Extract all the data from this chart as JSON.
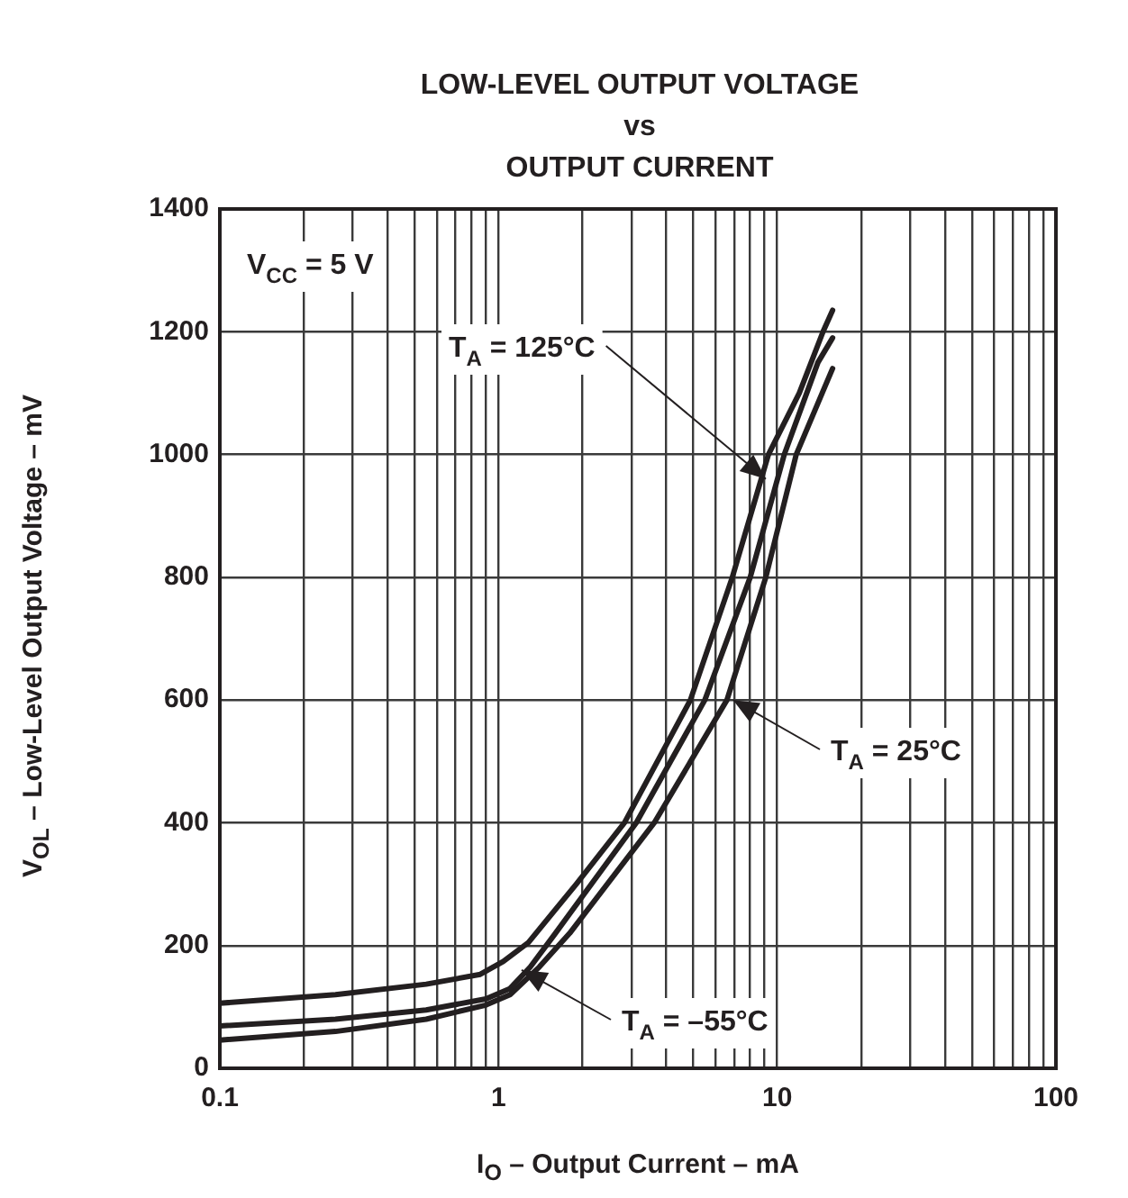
{
  "chart_data": {
    "type": "line",
    "title": "LOW-LEVEL OUTPUT VOLTAGE\nvs\nOUTPUT CURRENT",
    "xlabel": "I$_{O}$ – Output Current – mA",
    "ylabel": "V$_{OL}$ – Low-Level Output Voltage – mV",
    "log": "x",
    "grid": true,
    "legend": false,
    "xlim": [
      0.1,
      100
    ],
    "xticks": [
      0.1,
      {
        "value": 0.2,
        "label": null
      },
      {
        "value": 0.3,
        "label": null
      },
      {
        "value": 0.4,
        "label": null
      },
      {
        "value": 0.5,
        "label": null
      },
      {
        "value": 0.6,
        "label": null
      },
      {
        "value": 0.7,
        "label": null
      },
      {
        "value": 0.8,
        "label": null
      },
      {
        "value": 0.9,
        "label": null
      },
      1,
      {
        "value": 2,
        "label": null
      },
      {
        "value": 3,
        "label": null
      },
      {
        "value": 4,
        "label": null
      },
      {
        "value": 5,
        "label": null
      },
      {
        "value": 6,
        "label": null
      },
      {
        "value": 7,
        "label": null
      },
      {
        "value": 8,
        "label": null
      },
      {
        "value": 9,
        "label": null
      },
      10,
      {
        "value": 20,
        "label": null
      },
      {
        "value": 30,
        "label": null
      },
      {
        "value": 40,
        "label": null
      },
      {
        "value": 50,
        "label": null
      },
      {
        "value": 60,
        "label": null
      },
      {
        "value": 70,
        "label": null
      },
      {
        "value": 80,
        "label": null
      },
      {
        "value": 90,
        "label": null
      },
      100
    ],
    "ylim": [
      0,
      1400
    ],
    "yticks": [
      0,
      200,
      400,
      600,
      800,
      1000,
      1200,
      1400
    ],
    "series": [
      {
        "color": "#231f20",
        "x": [
          0.1,
          0.26,
          0.55,
          0.86,
          1.04,
          1.28,
          1.9,
          2.83,
          4.88,
          6.9,
          9.3,
          12,
          14.6,
          15.8
        ],
        "values": [
          106,
          120,
          137,
          153,
          174,
          205,
          300,
          400,
          600,
          800,
          1000,
          1100,
          1200,
          1235
        ]
      },
      {
        "color": "#231f20",
        "x": [
          0.1,
          0.26,
          0.55,
          0.9,
          1.1,
          1.3,
          1.6,
          3.12,
          5.5,
          8,
          10.6,
          14,
          15.8
        ],
        "values": [
          69,
          80,
          95,
          113,
          130,
          165,
          220,
          400,
          600,
          800,
          1000,
          1150,
          1190
        ]
      },
      {
        "color": "#231f20",
        "x": [
          0.1,
          0.26,
          0.55,
          0.9,
          1.1,
          1.4,
          1.8,
          3.62,
          6.6,
          9.1,
          11.7,
          14.5,
          15.8
        ],
        "values": [
          46,
          60,
          80,
          103,
          120,
          165,
          220,
          400,
          600,
          800,
          1000,
          1100,
          1140
        ]
      }
    ],
    "annotations": [
      "V$_{CC}$ = 5 V",
      {
        "text": "T$_{A}$ = 125°C",
        "x": 9.1,
        "y": 960
      },
      {
        "text": "T$_{A}$ = 25°C",
        "x": 6.95,
        "y": 600
      },
      {
        "text": "T$_{A}$ = –55°C",
        "x": 1.21,
        "y": 160
      }
    ]
  }
}
